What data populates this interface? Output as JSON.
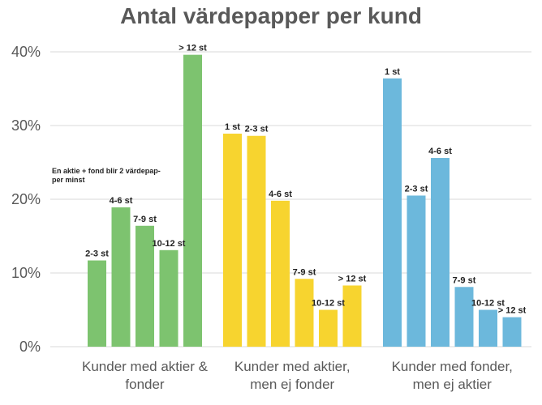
{
  "chart_data": {
    "type": "bar",
    "title": "Antal värdepapper per kund",
    "ylim": [
      0,
      40
    ],
    "yticks": [
      "0%",
      "10%",
      "20%",
      "30%",
      "40%"
    ],
    "grid": true,
    "annotation": [
      "En aktie + fond blir 2 värdepap-",
      "per minst"
    ],
    "groups": [
      {
        "label": [
          "Kunder med aktier &",
          "fonder"
        ],
        "color": "#7dc36f",
        "bars": [
          {
            "label": "2-3 st",
            "value": 11.7
          },
          {
            "label": "4-6 st",
            "value": 18.9
          },
          {
            "label": "7-9 st",
            "value": 16.4
          },
          {
            "label": "10-12 st",
            "value": 13.1
          },
          {
            "label": "> 12 st",
            "value": 39.6
          }
        ]
      },
      {
        "label": [
          "Kunder med aktier,",
          "men ej fonder"
        ],
        "color": "#f7d42f",
        "bars": [
          {
            "label": "1 st",
            "value": 28.9
          },
          {
            "label": "2-3 st",
            "value": 28.6
          },
          {
            "label": "4-6 st",
            "value": 19.8
          },
          {
            "label": "7-9 st",
            "value": 9.2
          },
          {
            "label": "10-12 st",
            "value": 5.0
          },
          {
            "label": "> 12 st",
            "value": 8.3
          }
        ]
      },
      {
        "label": [
          "Kunder med fonder,",
          "men ej aktier"
        ],
        "color": "#6cb8dc",
        "bars": [
          {
            "label": "1 st",
            "value": 36.4
          },
          {
            "label": "2-3 st",
            "value": 20.5
          },
          {
            "label": "4-6 st",
            "value": 25.6
          },
          {
            "label": "7-9 st",
            "value": 8.1
          },
          {
            "label": "10-12 st",
            "value": 5.0
          },
          {
            "label": "> 12 st",
            "value": 4.0
          }
        ]
      }
    ]
  }
}
